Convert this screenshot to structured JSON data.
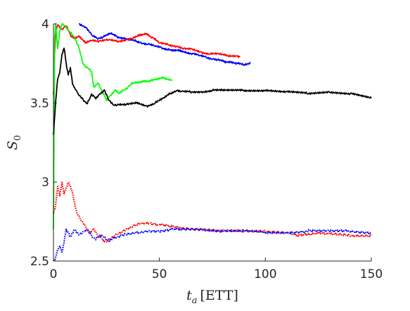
{
  "chart_data": {
    "type": "line",
    "title": "",
    "xlabel_main": "t",
    "xlabel_sub": "a",
    "xlabel_unit": "[ETT]",
    "ylabel_main": "S",
    "ylabel_sub": "0",
    "xlim": [
      0,
      150
    ],
    "ylim": [
      2.5,
      4.0
    ],
    "xticks": [
      0,
      50,
      100,
      150
    ],
    "yticks": [
      2.5,
      3,
      3.5,
      4
    ],
    "xtick_labels": [
      "0",
      "50",
      "100",
      "150"
    ],
    "ytick_labels": [
      "2.5",
      "3",
      "3.5",
      "4"
    ],
    "grid": false,
    "series": [
      {
        "color": "#0000ff",
        "style": "solid",
        "points": [
          [
            12,
            4.0
          ],
          [
            15,
            3.98
          ],
          [
            18,
            3.93
          ],
          [
            21,
            3.91
          ],
          [
            24,
            3.92
          ],
          [
            27,
            3.94
          ],
          [
            30,
            3.92
          ],
          [
            33,
            3.91
          ],
          [
            36,
            3.9
          ],
          [
            39,
            3.89
          ],
          [
            42,
            3.88
          ],
          [
            45,
            3.87
          ],
          [
            48,
            3.86
          ],
          [
            51,
            3.85
          ],
          [
            54,
            3.84
          ],
          [
            57,
            3.83
          ],
          [
            60,
            3.83
          ],
          [
            63,
            3.82
          ],
          [
            66,
            3.81
          ],
          [
            69,
            3.8
          ],
          [
            72,
            3.79
          ],
          [
            75,
            3.78
          ],
          [
            78,
            3.77
          ],
          [
            81,
            3.76
          ],
          [
            84,
            3.76
          ],
          [
            87,
            3.75
          ],
          [
            90,
            3.74
          ],
          [
            93,
            3.75
          ]
        ]
      },
      {
        "color": "#ff0000",
        "style": "solid",
        "points": [
          [
            0,
            3.55
          ],
          [
            0.5,
            3.8
          ],
          [
            1,
            3.95
          ],
          [
            2,
            4.0
          ],
          [
            4,
            3.96
          ],
          [
            6,
            3.99
          ],
          [
            8,
            3.93
          ],
          [
            10,
            3.91
          ],
          [
            12,
            3.92
          ],
          [
            15,
            3.88
          ],
          [
            18,
            3.9
          ],
          [
            22,
            3.89
          ],
          [
            26,
            3.9
          ],
          [
            30,
            3.89
          ],
          [
            34,
            3.9
          ],
          [
            38,
            3.91
          ],
          [
            41,
            3.93
          ],
          [
            44,
            3.94
          ],
          [
            47,
            3.91
          ],
          [
            50,
            3.88
          ],
          [
            54,
            3.87
          ],
          [
            58,
            3.86
          ],
          [
            62,
            3.84
          ],
          [
            66,
            3.84
          ],
          [
            70,
            3.82
          ],
          [
            74,
            3.81
          ],
          [
            78,
            3.81
          ],
          [
            82,
            3.8
          ],
          [
            86,
            3.8
          ],
          [
            88,
            3.79
          ]
        ]
      },
      {
        "color": "#00ff00",
        "style": "solid",
        "points": [
          [
            0,
            2.7
          ],
          [
            0.5,
            3.9
          ],
          [
            1,
            4.0
          ],
          [
            2,
            3.85
          ],
          [
            3,
            3.95
          ],
          [
            4,
            4.0
          ],
          [
            6,
            3.98
          ],
          [
            8,
            3.95
          ],
          [
            10,
            3.91
          ],
          [
            12,
            3.85
          ],
          [
            14,
            3.75
          ],
          [
            16,
            3.72
          ],
          [
            18,
            3.7
          ],
          [
            19,
            3.6
          ],
          [
            21,
            3.63
          ],
          [
            23,
            3.57
          ],
          [
            25,
            3.52
          ],
          [
            27,
            3.55
          ],
          [
            29,
            3.58
          ],
          [
            31,
            3.56
          ],
          [
            33,
            3.58
          ],
          [
            35,
            3.6
          ],
          [
            37,
            3.62
          ],
          [
            40,
            3.63
          ],
          [
            43,
            3.64
          ],
          [
            46,
            3.64
          ],
          [
            49,
            3.65
          ],
          [
            52,
            3.66
          ],
          [
            55,
            3.65
          ],
          [
            56,
            3.64
          ]
        ]
      },
      {
        "color": "#000000",
        "style": "solid",
        "points": [
          [
            0,
            3.3
          ],
          [
            1,
            3.5
          ],
          [
            2,
            3.65
          ],
          [
            3,
            3.7
          ],
          [
            4,
            3.8
          ],
          [
            5,
            3.85
          ],
          [
            6,
            3.75
          ],
          [
            7,
            3.68
          ],
          [
            8,
            3.72
          ],
          [
            9,
            3.62
          ],
          [
            10,
            3.6
          ],
          [
            11,
            3.57
          ],
          [
            12,
            3.55
          ],
          [
            14,
            3.52
          ],
          [
            16,
            3.5
          ],
          [
            18,
            3.55
          ],
          [
            20,
            3.53
          ],
          [
            22,
            3.56
          ],
          [
            24,
            3.58
          ],
          [
            26,
            3.52
          ],
          [
            28,
            3.49
          ],
          [
            30,
            3.49
          ],
          [
            35,
            3.49
          ],
          [
            40,
            3.5
          ],
          [
            44,
            3.48
          ],
          [
            48,
            3.5
          ],
          [
            52,
            3.53
          ],
          [
            55,
            3.56
          ],
          [
            58,
            3.58
          ],
          [
            61,
            3.57
          ],
          [
            65,
            3.57
          ],
          [
            70,
            3.57
          ],
          [
            75,
            3.58
          ],
          [
            80,
            3.58
          ],
          [
            90,
            3.58
          ],
          [
            100,
            3.58
          ],
          [
            110,
            3.57
          ],
          [
            120,
            3.56
          ],
          [
            130,
            3.57
          ],
          [
            140,
            3.56
          ],
          [
            150,
            3.53
          ]
        ]
      },
      {
        "color": "#ff0000",
        "style": "dotted",
        "points": [
          [
            0,
            2.8
          ],
          [
            1,
            2.85
          ],
          [
            2,
            2.97
          ],
          [
            3,
            2.92
          ],
          [
            4,
            2.99
          ],
          [
            5,
            2.93
          ],
          [
            6,
            2.96
          ],
          [
            7,
            3.0
          ],
          [
            8,
            2.97
          ],
          [
            9,
            2.93
          ],
          [
            10,
            2.87
          ],
          [
            11,
            2.8
          ],
          [
            13,
            2.76
          ],
          [
            15,
            2.72
          ],
          [
            17,
            2.68
          ],
          [
            19,
            2.7
          ],
          [
            21,
            2.66
          ],
          [
            23,
            2.64
          ],
          [
            25,
            2.62
          ],
          [
            27,
            2.64
          ],
          [
            30,
            2.67
          ],
          [
            34,
            2.7
          ],
          [
            38,
            2.72
          ],
          [
            42,
            2.74
          ],
          [
            46,
            2.74
          ],
          [
            50,
            2.73
          ],
          [
            55,
            2.72
          ],
          [
            60,
            2.71
          ],
          [
            70,
            2.7
          ],
          [
            80,
            2.69
          ],
          [
            90,
            2.69
          ],
          [
            100,
            2.69
          ],
          [
            110,
            2.68
          ],
          [
            115,
            2.66
          ],
          [
            120,
            2.67
          ],
          [
            125,
            2.68
          ],
          [
            130,
            2.67
          ],
          [
            140,
            2.66
          ],
          [
            150,
            2.66
          ]
        ]
      },
      {
        "color": "#0000ff",
        "style": "dotted",
        "points": [
          [
            0,
            2.5
          ],
          [
            1,
            2.52
          ],
          [
            2,
            2.57
          ],
          [
            3,
            2.6
          ],
          [
            4,
            2.55
          ],
          [
            5,
            2.62
          ],
          [
            6,
            2.7
          ],
          [
            7,
            2.68
          ],
          [
            8,
            2.65
          ],
          [
            10,
            2.7
          ],
          [
            12,
            2.67
          ],
          [
            14,
            2.68
          ],
          [
            16,
            2.7
          ],
          [
            18,
            2.66
          ],
          [
            20,
            2.64
          ],
          [
            22,
            2.66
          ],
          [
            24,
            2.65
          ],
          [
            26,
            2.63
          ],
          [
            28,
            2.64
          ],
          [
            30,
            2.65
          ],
          [
            34,
            2.67
          ],
          [
            38,
            2.68
          ],
          [
            42,
            2.68
          ],
          [
            46,
            2.69
          ],
          [
            50,
            2.69
          ],
          [
            55,
            2.7
          ],
          [
            60,
            2.7
          ],
          [
            70,
            2.7
          ],
          [
            80,
            2.69
          ],
          [
            90,
            2.69
          ],
          [
            100,
            2.68
          ],
          [
            110,
            2.68
          ],
          [
            120,
            2.69
          ],
          [
            130,
            2.69
          ],
          [
            140,
            2.69
          ],
          [
            150,
            2.68
          ]
        ]
      }
    ]
  }
}
